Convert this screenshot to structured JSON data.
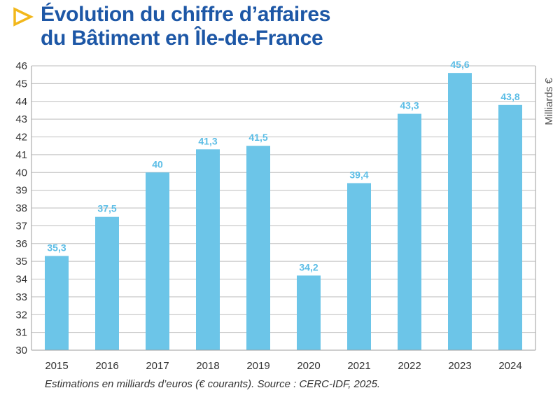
{
  "title": {
    "line1": "Évolution du chiffre d’affaires",
    "line2": "du Bâtiment en Île-de-France"
  },
  "caption": "Estimations en milliards d’euros (€ courants). Source : CERC-IDF, 2025.",
  "colors": {
    "bar": "#6cc5e8",
    "label": "#5bbde6",
    "title": "#1d57a6",
    "accent": "#f2b71b",
    "grid": "#bdbdbd"
  },
  "chart_data": {
    "type": "bar",
    "title": "Évolution du chiffre d’affaires du Bâtiment en Île-de-France",
    "xlabel": "",
    "ylabel": "Milliards €",
    "ylim": [
      30,
      46
    ],
    "yticks": [
      30,
      31,
      32,
      33,
      34,
      35,
      36,
      37,
      38,
      39,
      40,
      41,
      42,
      43,
      44,
      45,
      46
    ],
    "grid": true,
    "categories": [
      "2015",
      "2016",
      "2017",
      "2018",
      "2019",
      "2020",
      "2021",
      "2022",
      "2023",
      "2024"
    ],
    "values": [
      35.3,
      37.5,
      40,
      41.3,
      41.5,
      34.2,
      39.4,
      43.3,
      45.6,
      43.8
    ],
    "value_labels": [
      "35,3",
      "37,5",
      "40",
      "41,3",
      "41,5",
      "34,2",
      "39,4",
      "43,3",
      "45,6",
      "43,8"
    ]
  }
}
